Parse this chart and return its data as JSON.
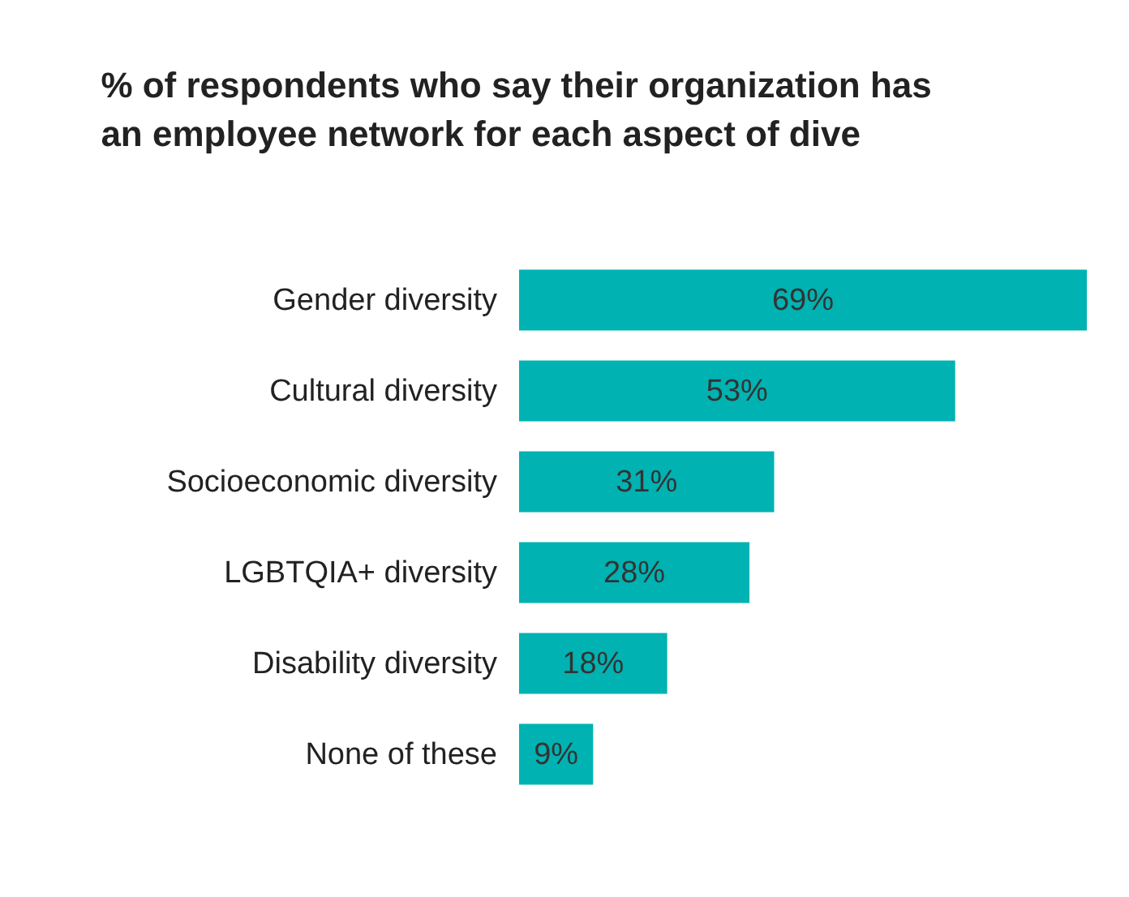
{
  "chart_data": {
    "type": "bar",
    "orientation": "horizontal",
    "title": [
      "% of respondents who say their organization has",
      "an employee network for each aspect of dive"
    ],
    "categories": [
      "Gender diversity",
      "Cultural diversity",
      "Socioeconomic diversity",
      "LGBTQIA+ diversity",
      "Disability diversity",
      "None of these"
    ],
    "values": [
      69,
      53,
      31,
      28,
      18,
      9
    ],
    "color": "#00b2b2",
    "data_labels": true,
    "value_labels": [
      "69%",
      "53%",
      "31%",
      "28%",
      "18%",
      "9%"
    ],
    "grid": false
  }
}
